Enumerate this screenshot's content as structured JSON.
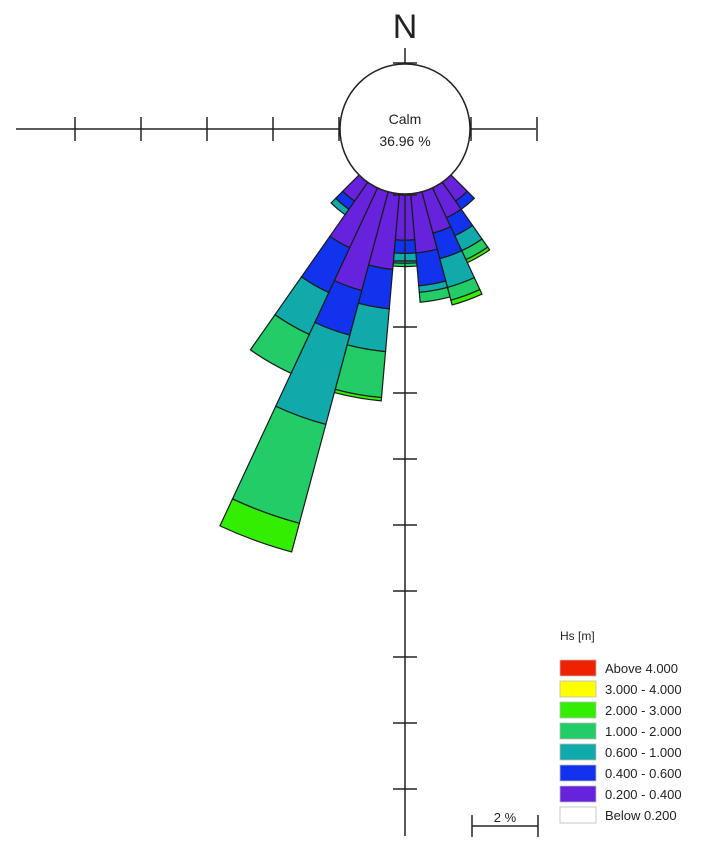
{
  "chart_data": {
    "type": "wind-rose",
    "north_label": "N",
    "calm": {
      "label": "Calm",
      "value_text": "36.96 %",
      "value": 36.96
    },
    "scale_bar": {
      "label": "2 %",
      "value": 2
    },
    "legend": {
      "title": "Hs [m]",
      "entries": [
        {
          "label": "Above  4.000",
          "color": "#ee2200"
        },
        {
          "label": "3.000 - 4.000",
          "color": "#ffff00"
        },
        {
          "label": "2.000 - 3.000",
          "color": "#33ee00"
        },
        {
          "label": "1.000 - 2.000",
          "color": "#22cc66"
        },
        {
          "label": "0.600 - 1.000",
          "color": "#11aaaa"
        },
        {
          "label": "0.400 - 0.600",
          "color": "#1133ee"
        },
        {
          "label": "0.200 - 0.400",
          "color": "#6622dd"
        },
        {
          "label": "Below  0.200",
          "color": "#ffffff"
        }
      ]
    },
    "sector_width_deg": 10,
    "bins": [
      "0.200 - 0.400",
      "0.400 - 0.600",
      "0.600 - 1.000",
      "1.000 - 2.000",
      "2.000 - 3.000"
    ],
    "sectors": [
      {
        "direction_deg": 140,
        "values": [
          0.7,
          0.3
        ]
      },
      {
        "direction_deg": 150,
        "values": [
          1.0,
          0.6,
          0.5,
          0.3,
          0.1
        ]
      },
      {
        "direction_deg": 160,
        "values": [
          1.3,
          0.8,
          0.9,
          0.4,
          0.15
        ]
      },
      {
        "direction_deg": 170,
        "values": [
          1.8,
          1.0,
          0.2,
          0.3
        ]
      },
      {
        "direction_deg": 180,
        "values": [
          1.4,
          0.4,
          0.3,
          0.1
        ]
      },
      {
        "direction_deg": 190,
        "values": [
          2.3,
          1.2,
          1.3,
          1.4,
          0.1
        ]
      },
      {
        "direction_deg": 200,
        "values": [
          3.1,
          1.4,
          2.8,
          3.1,
          0.9
        ]
      },
      {
        "direction_deg": 210,
        "values": [
          2.0,
          1.5,
          1.4,
          1.3
        ]
      },
      {
        "direction_deg": 220,
        "values": [
          0.7,
          0.3,
          0.2
        ]
      }
    ]
  }
}
